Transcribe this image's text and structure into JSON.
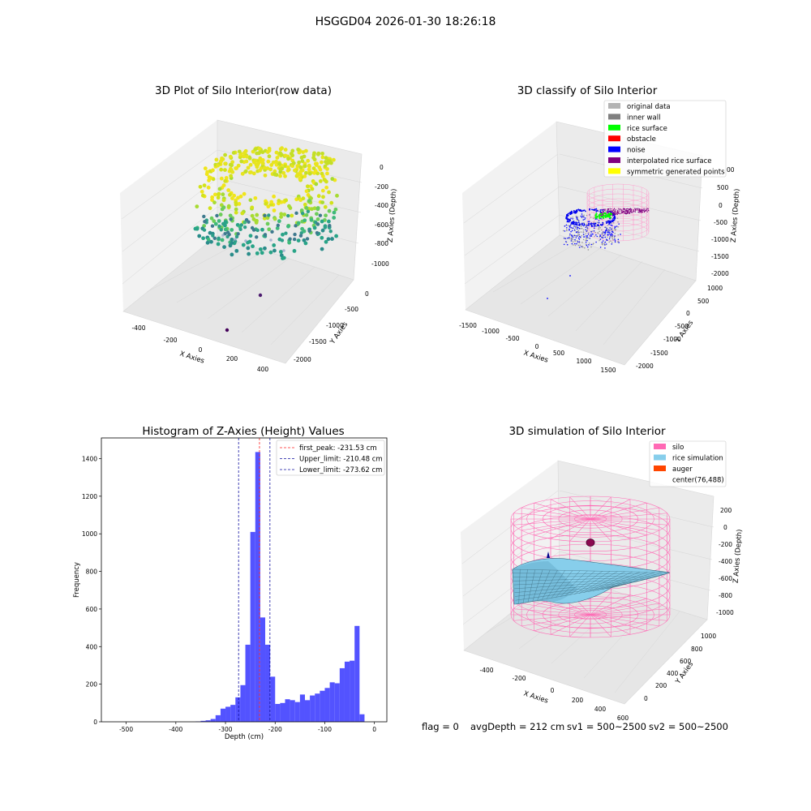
{
  "figure_title": "HSGGD04 2026-01-30 18:26:18",
  "footer": {
    "flag": "flag = 0",
    "avg_depth": "avgDepth = 212 cm",
    "sv1": "sv1 = 500~2500",
    "sv2": "sv2 = 500~2500"
  },
  "chart_data": [
    {
      "type": "scatter",
      "projection": "3d",
      "title": "3D Plot of Silo Interior(row data)",
      "xlabel": "X Axies",
      "ylabel": "Y Axies",
      "zlabel": "Z Axies (Depth)",
      "x_ticks": [
        "-400",
        "-200",
        "0",
        "200",
        "400"
      ],
      "y_ticks": [
        "0",
        "-500",
        "-1000",
        "-1500",
        "-2000"
      ],
      "z_ticks": [
        "0",
        "-200",
        "-400",
        "-600",
        "-800",
        "-1000"
      ],
      "colormap": "viridis",
      "outlier_points": [
        {
          "x": 50,
          "y": -1300,
          "z": -1050
        },
        {
          "x": 120,
          "y": -1800,
          "z": -1050
        }
      ]
    },
    {
      "type": "scatter",
      "projection": "3d",
      "title": "3D classify of Silo Interior",
      "xlabel": "X Axies",
      "ylabel": "Y Axies",
      "zlabel": "Z Axies (Depth)",
      "x_ticks": [
        "-1500",
        "-1000",
        "-500",
        "0",
        "500",
        "1000",
        "1500"
      ],
      "y_ticks": [
        "1000",
        "500",
        "0",
        "-500",
        "-1000",
        "-1500",
        "-2000"
      ],
      "z_ticks": [
        "1000",
        "500",
        "0",
        "-500",
        "-1000",
        "-1500",
        "-2000"
      ],
      "z_tick_partial": "00",
      "legend_position": "upper right",
      "legend": [
        {
          "label": "original data",
          "color": "#b3b3b3"
        },
        {
          "label": "inner wall",
          "color": "#808080"
        },
        {
          "label": "rice surface",
          "color": "#00ff00"
        },
        {
          "label": "obstacle",
          "color": "#ff0000"
        },
        {
          "label": "noise",
          "color": "#0000ff"
        },
        {
          "label": "interpolated rice surface",
          "color": "#800080"
        },
        {
          "label": "symmetric generated points",
          "color": "#ffff00"
        }
      ]
    },
    {
      "type": "bar",
      "title": "Histogram of Z-Axies (Height) Values",
      "xlabel": "Depth (cm)",
      "ylabel": "Frequency",
      "xlim": [
        -550,
        25
      ],
      "ylim": [
        0,
        1510
      ],
      "x_ticks": [
        "-500",
        "-400",
        "-300",
        "-200",
        "-100",
        "0"
      ],
      "y_ticks": [
        "0",
        "200",
        "400",
        "600",
        "800",
        "1000",
        "1200",
        "1400"
      ],
      "bin_width": 10,
      "bin_edges_start": -360,
      "values": [
        2,
        5,
        8,
        15,
        35,
        70,
        80,
        90,
        130,
        195,
        410,
        1010,
        1435,
        555,
        410,
        240,
        95,
        100,
        120,
        115,
        105,
        145,
        115,
        140,
        150,
        165,
        180,
        210,
        205,
        285,
        320,
        325,
        510,
        40
      ],
      "bar_color": "#4a4aff",
      "vlines": [
        {
          "label": "first_peak: -231.53 cm",
          "x": -231.53,
          "color": "#ff2020"
        },
        {
          "label": "Upper_limit: -210.48 cm",
          "x": -210.48,
          "color": "#1010a0"
        },
        {
          "label": "Lower_limit: -273.62 cm",
          "x": -273.62,
          "color": "#1010a0"
        }
      ],
      "legend_position": "upper right"
    },
    {
      "type": "surface",
      "projection": "3d",
      "title": "3D simulation of Silo Interior",
      "xlabel": "X Axies",
      "ylabel": "Y Axies",
      "zlabel": "Z Axies (Depth)",
      "x_ticks": [
        "-400",
        "-200",
        "0",
        "200",
        "400",
        "600"
      ],
      "y_ticks": [
        "1000",
        "800",
        "600",
        "400",
        "200",
        "0"
      ],
      "z_ticks": [
        "200",
        "0",
        "-200",
        "-400",
        "-600",
        "-800",
        "-1000"
      ],
      "legend_position": "upper right",
      "legend": [
        {
          "label": "silo",
          "color": "#ff69b4"
        },
        {
          "label": "rice simulation",
          "color": "#87ceeb"
        },
        {
          "label": "auger",
          "color": "#ff4500"
        },
        {
          "label": "center(76,488)",
          "color": ""
        }
      ]
    }
  ]
}
